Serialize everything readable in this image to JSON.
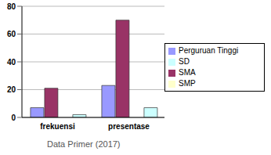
{
  "chart_data": {
    "type": "bar",
    "categories": [
      "frekuensi",
      "presentase"
    ],
    "series": [
      {
        "name": "Perguruan Tinggi",
        "color": "#9999ff",
        "values": [
          7,
          23
        ]
      },
      {
        "name": "SMA",
        "color": "#993366",
        "values": [
          21,
          70
        ]
      },
      {
        "name": "SMP",
        "color": "#ffffcc",
        "values": [
          0,
          0
        ]
      },
      {
        "name": "SD",
        "color": "#ccffff",
        "values": [
          2,
          7
        ]
      }
    ],
    "ylim": [
      0,
      80
    ],
    "yticks": [
      0,
      20,
      40,
      60,
      80
    ],
    "grid": true,
    "legend": "right",
    "annotations": [
      "Data Primer (2017)"
    ]
  }
}
